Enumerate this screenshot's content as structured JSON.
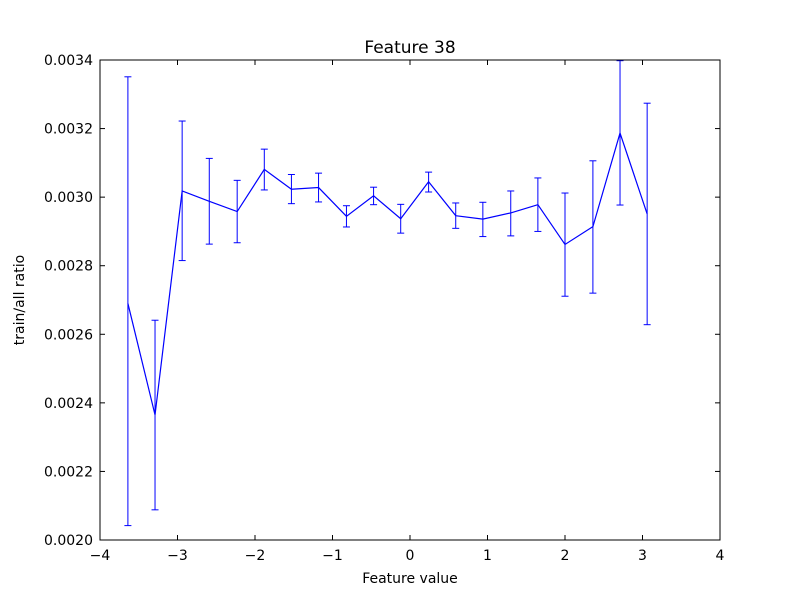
{
  "chart_data": {
    "type": "line",
    "title": "Feature 38",
    "xlabel": "Feature value",
    "ylabel": "train/all ratio",
    "xlim": [
      -4,
      4
    ],
    "ylim": [
      0.002,
      0.0034
    ],
    "xticks": [
      -4,
      -3,
      -2,
      -1,
      0,
      1,
      2,
      3,
      4
    ],
    "xtick_labels": [
      "−4",
      "−3",
      "−2",
      "−1",
      "0",
      "1",
      "2",
      "3",
      "4"
    ],
    "yticks": [
      0.002,
      0.0022,
      0.0024,
      0.0026,
      0.0028,
      0.003,
      0.0032,
      0.0034
    ],
    "ytick_labels": [
      "0.0020",
      "0.0022",
      "0.0024",
      "0.0026",
      "0.0028",
      "0.0030",
      "0.0032",
      "0.0034"
    ],
    "grid": false,
    "line_color": "#0000ff",
    "series": [
      {
        "x": [
          -3.64,
          -3.29,
          -2.94,
          -2.59,
          -2.23,
          -1.88,
          -1.53,
          -1.18,
          -0.82,
          -0.47,
          -0.12,
          0.24,
          0.59,
          0.94,
          1.3,
          1.65,
          2.0,
          2.36,
          2.71,
          3.06
        ],
        "y": [
          0.00269,
          0.002365,
          0.003018,
          0.002988,
          0.002958,
          0.003081,
          0.003023,
          0.003028,
          0.002944,
          0.003004,
          0.002937,
          0.003045,
          0.002946,
          0.002936,
          0.002954,
          0.002978,
          0.002862,
          0.002914,
          0.003187,
          0.002951
        ],
        "err_low": [
          0.002042,
          0.002088,
          0.002815,
          0.002863,
          0.002867,
          0.003021,
          0.002981,
          0.002986,
          0.002913,
          0.002978,
          0.002895,
          0.003015,
          0.002909,
          0.002885,
          0.002887,
          0.0029,
          0.002711,
          0.00272,
          0.002977,
          0.002628
        ],
        "err_high": [
          0.003351,
          0.002641,
          0.003222,
          0.003113,
          0.003049,
          0.00314,
          0.003066,
          0.00307,
          0.002975,
          0.003029,
          0.002979,
          0.003073,
          0.002983,
          0.002985,
          0.003018,
          0.003056,
          0.003012,
          0.003106,
          0.003398,
          0.003274
        ]
      }
    ]
  }
}
